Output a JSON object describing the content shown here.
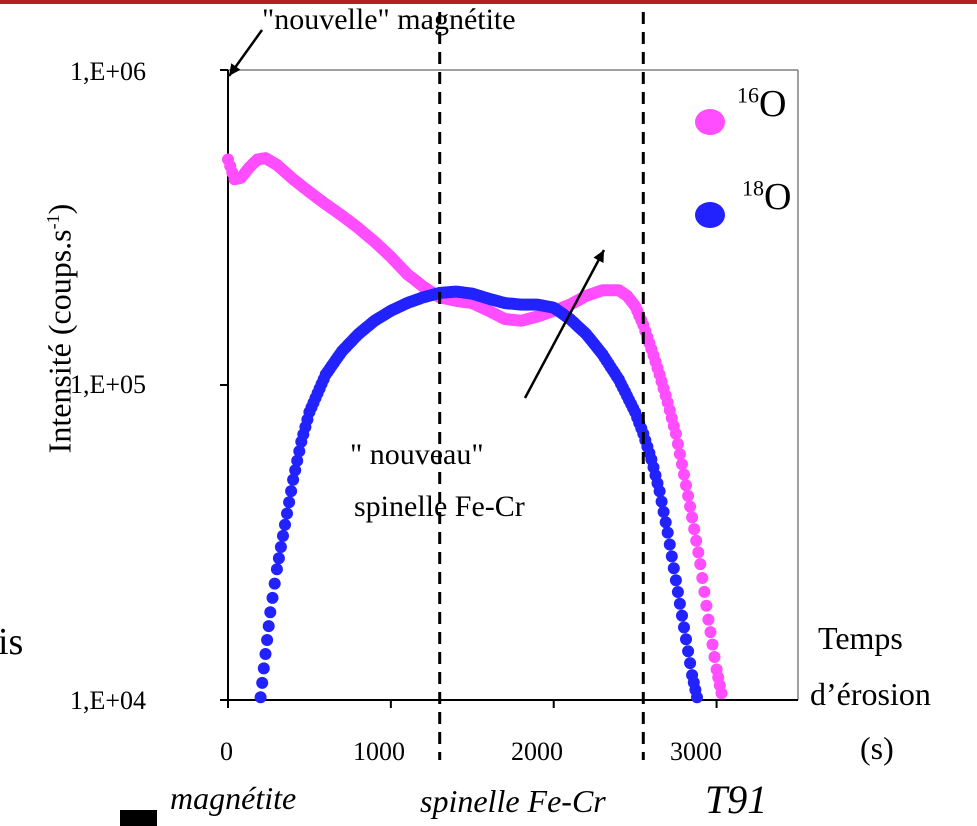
{
  "chart_data": {
    "type": "scatter",
    "title": "",
    "xlabel": [
      "Temps",
      "d’érosion",
      "(s)"
    ],
    "ylabel": "Intensité (coups.s-1)",
    "ylabel_main": "Intensité (coups.s",
    "ylabel_sup": "-1",
    "ylabel_close": ")",
    "xlim": [
      0,
      3500
    ],
    "ylim": [
      10000,
      1000000
    ],
    "yscale": "log",
    "x_ticks": [
      "0",
      "1000",
      "2000",
      "3000"
    ],
    "y_ticks": [
      "1,E+04",
      "1,E+05",
      "1,E+06"
    ],
    "legend_position": "top-right",
    "series": [
      {
        "name": "16O",
        "mass": "16",
        "element": "O",
        "color": "#ff4dff",
        "points": [
          [
            0,
            520000
          ],
          [
            40,
            450000
          ],
          [
            80,
            455000
          ],
          [
            130,
            490000
          ],
          [
            180,
            520000
          ],
          [
            230,
            525000
          ],
          [
            300,
            500000
          ],
          [
            400,
            450000
          ],
          [
            500,
            410000
          ],
          [
            600,
            375000
          ],
          [
            700,
            345000
          ],
          [
            800,
            315000
          ],
          [
            900,
            285000
          ],
          [
            1000,
            255000
          ],
          [
            1100,
            225000
          ],
          [
            1200,
            205000
          ],
          [
            1300,
            190000
          ],
          [
            1400,
            185000
          ],
          [
            1500,
            182000
          ],
          [
            1600,
            172000
          ],
          [
            1700,
            162000
          ],
          [
            1800,
            160000
          ],
          [
            1900,
            165000
          ],
          [
            2000,
            172000
          ],
          [
            2100,
            180000
          ],
          [
            2200,
            192000
          ],
          [
            2300,
            200000
          ],
          [
            2400,
            200000
          ],
          [
            2450,
            192000
          ],
          [
            2500,
            178000
          ],
          [
            2550,
            155000
          ],
          [
            2600,
            130000
          ],
          [
            2650,
            108000
          ],
          [
            2700,
            88000
          ],
          [
            2750,
            70000
          ],
          [
            2800,
            52000
          ],
          [
            2850,
            38000
          ],
          [
            2900,
            27000
          ],
          [
            2950,
            18000
          ],
          [
            3000,
            12500
          ],
          [
            3030,
            10500
          ]
        ]
      },
      {
        "name": "18O",
        "mass": "18",
        "element": "O",
        "color": "#2222ff",
        "points": [
          [
            200,
            10200
          ],
          [
            230,
            14000
          ],
          [
            260,
            19000
          ],
          [
            300,
            26000
          ],
          [
            350,
            36000
          ],
          [
            400,
            50000
          ],
          [
            450,
            66000
          ],
          [
            500,
            82000
          ],
          [
            600,
            108000
          ],
          [
            700,
            128000
          ],
          [
            800,
            145000
          ],
          [
            900,
            160000
          ],
          [
            1000,
            172000
          ],
          [
            1100,
            182000
          ],
          [
            1200,
            190000
          ],
          [
            1300,
            196000
          ],
          [
            1400,
            198000
          ],
          [
            1500,
            195000
          ],
          [
            1600,
            188000
          ],
          [
            1700,
            182000
          ],
          [
            1800,
            180000
          ],
          [
            1900,
            180000
          ],
          [
            2000,
            176000
          ],
          [
            2100,
            162000
          ],
          [
            2200,
            145000
          ],
          [
            2300,
            125000
          ],
          [
            2400,
            104000
          ],
          [
            2500,
            82000
          ],
          [
            2550,
            70000
          ],
          [
            2600,
            58000
          ],
          [
            2650,
            46000
          ],
          [
            2700,
            34000
          ],
          [
            2750,
            24000
          ],
          [
            2800,
            17000
          ],
          [
            2850,
            12000
          ],
          [
            2880,
            10200
          ]
        ]
      }
    ],
    "vertical_lines_x": [
      1300,
      2550
    ],
    "annotations": {
      "top": "\"nouvelle\" magnétite",
      "spinel_line1": "\" nouveau\"",
      "spinel_line2": "spinelle Fe-Cr"
    }
  },
  "bottom_labels": {
    "magnetite": "magnétite",
    "spinelle": "spinelle Fe-Cr",
    "t91": "T91"
  },
  "left_fragment": "is"
}
